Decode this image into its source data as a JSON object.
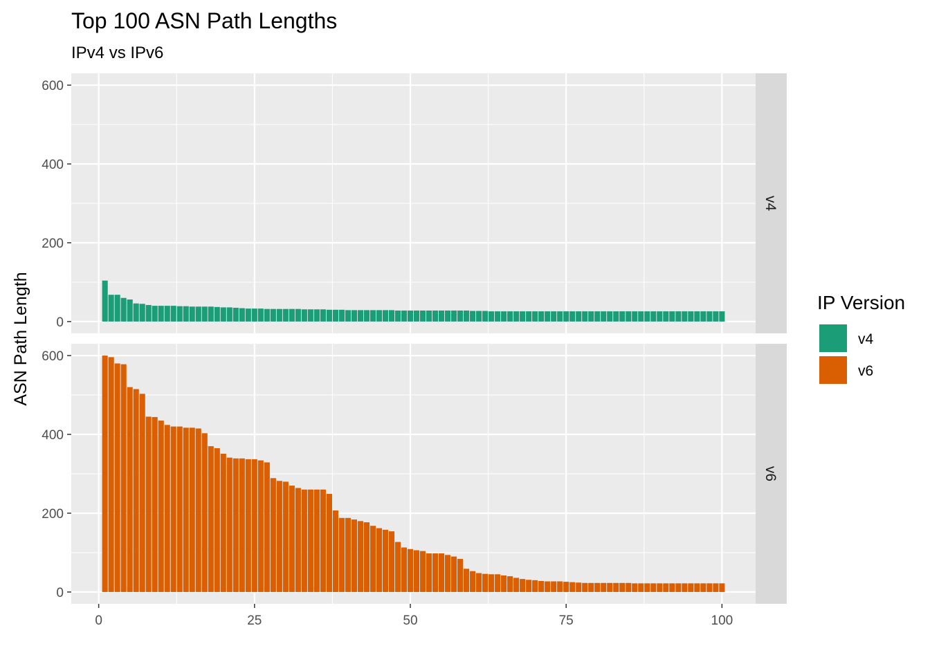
{
  "chart_data": {
    "type": "bar",
    "title": "Top 100 ASN Path Lengths",
    "subtitle": "IPv4 vs IPv6",
    "xlabel": "",
    "ylabel": "ASN Path Length",
    "xlim": [
      0,
      100
    ],
    "ylim": [
      0,
      600
    ],
    "x_ticks": [
      0,
      25,
      50,
      75,
      100
    ],
    "y_ticks": [
      0,
      200,
      400,
      600
    ],
    "grid": true,
    "facets": "rows",
    "legend": {
      "title": "IP Version",
      "placement": "right"
    },
    "series": [
      {
        "name": "v4",
        "facet_label": "v4",
        "color": "#1b9e77",
        "values": [
          104,
          68,
          68,
          60,
          56,
          46,
          45,
          42,
          40,
          40,
          40,
          40,
          39,
          39,
          38,
          38,
          38,
          38,
          37,
          36,
          36,
          35,
          34,
          33,
          33,
          33,
          32,
          32,
          32,
          32,
          32,
          32,
          31,
          31,
          31,
          31,
          30,
          30,
          30,
          29,
          29,
          29,
          29,
          29,
          29,
          29,
          29,
          28,
          28,
          28,
          28,
          28,
          28,
          28,
          28,
          28,
          28,
          28,
          28,
          27,
          27,
          27,
          26,
          26,
          26,
          26,
          26,
          26,
          26,
          26,
          26,
          26,
          26,
          26,
          26,
          26,
          26,
          26,
          26,
          26,
          26,
          26,
          26,
          26,
          26,
          26,
          26,
          26,
          26,
          26,
          26,
          26,
          26,
          26,
          26,
          26,
          26,
          26,
          26,
          26
        ]
      },
      {
        "name": "v6",
        "facet_label": "v6",
        "color": "#d95f02",
        "values": [
          600,
          596,
          580,
          578,
          520,
          515,
          503,
          445,
          444,
          435,
          424,
          420,
          420,
          417,
          417,
          415,
          403,
          370,
          365,
          351,
          341,
          339,
          339,
          337,
          337,
          334,
          329,
          289,
          282,
          280,
          270,
          264,
          260,
          260,
          260,
          260,
          249,
          207,
          188,
          188,
          184,
          180,
          177,
          168,
          162,
          158,
          154,
          127,
          113,
          109,
          106,
          104,
          98,
          98,
          98,
          94,
          90,
          84,
          59,
          53,
          48,
          46,
          45,
          45,
          42,
          40,
          36,
          33,
          31,
          30,
          28,
          27,
          27,
          27,
          26,
          25,
          24,
          23,
          23,
          23,
          23,
          23,
          23,
          23,
          23,
          22,
          22,
          22,
          22,
          22,
          22,
          22,
          22,
          22,
          22,
          22,
          22,
          22,
          22,
          22
        ]
      }
    ]
  }
}
